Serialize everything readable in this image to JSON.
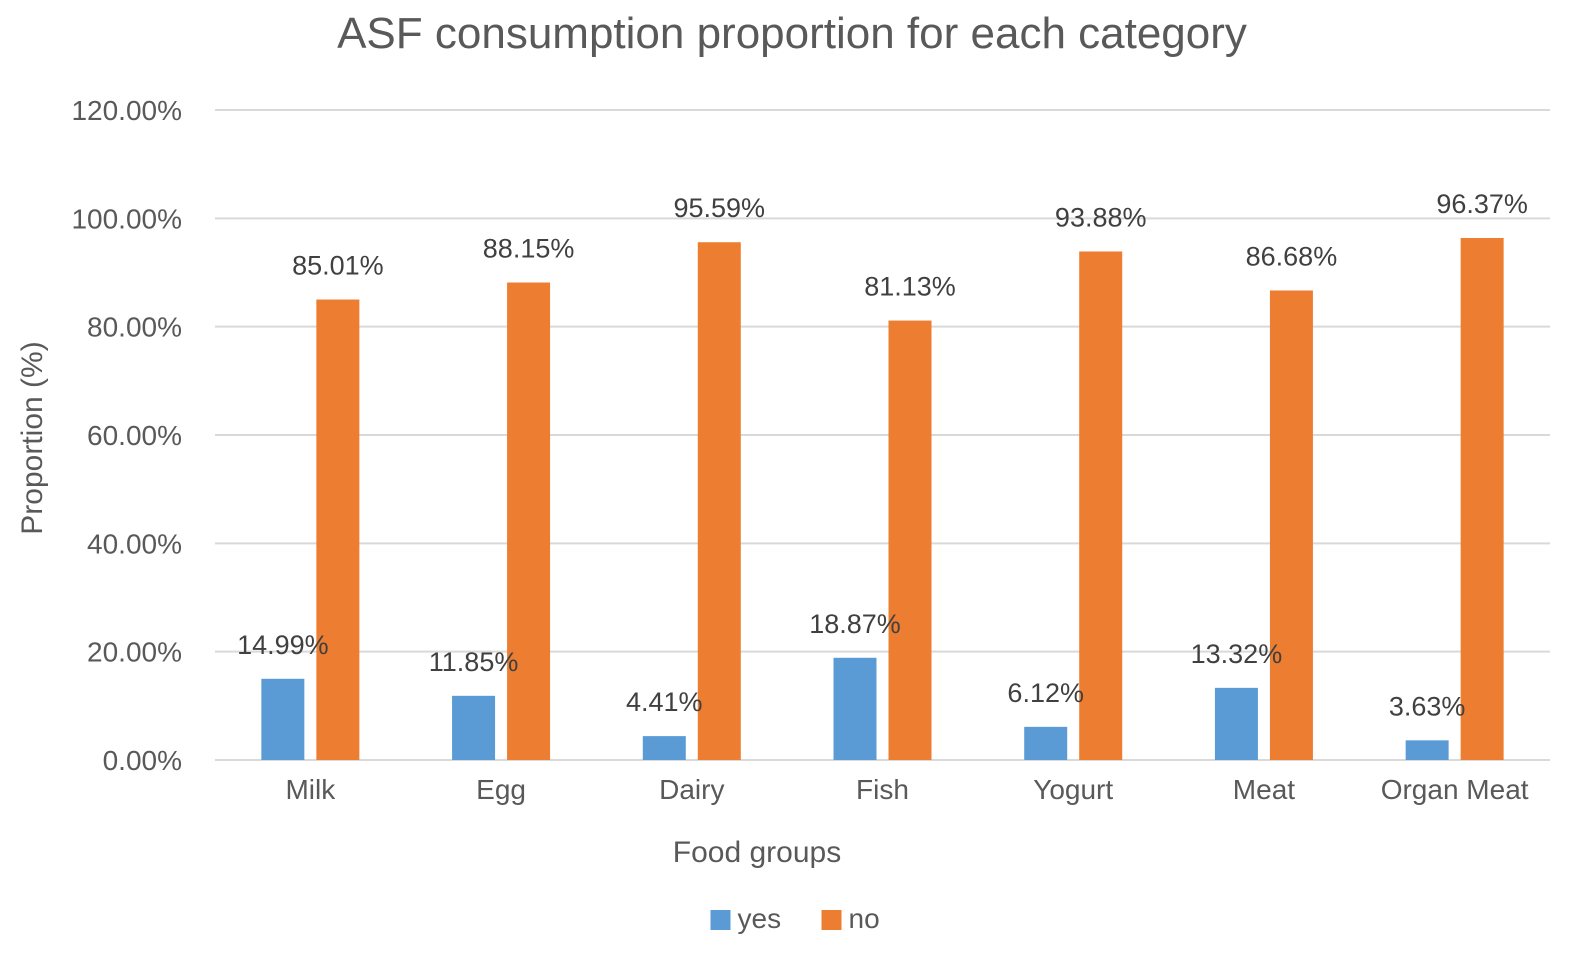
{
  "chart_data": {
    "type": "bar",
    "title": "ASF consumption proportion for each category",
    "xlabel": "Food groups",
    "ylabel": "Proportion (%)",
    "ylim": [
      0,
      120
    ],
    "y_ticks": [
      0,
      20,
      40,
      60,
      80,
      100,
      120
    ],
    "y_tick_labels": [
      "0.00%",
      "20.00%",
      "40.00%",
      "60.00%",
      "80.00%",
      "100.00%",
      "120.00%"
    ],
    "grid": true,
    "legend_position": "bottom",
    "categories": [
      "Milk",
      "Egg",
      "Dairy",
      "Fish",
      "Yogurt",
      "Meat",
      "Organ Meat"
    ],
    "series": [
      {
        "name": "yes",
        "color": "#5b9bd5",
        "values": [
          14.99,
          11.85,
          4.41,
          18.87,
          6.12,
          13.32,
          3.63
        ],
        "labels": [
          "14.99%",
          "11.85%",
          "4.41%",
          "18.87%",
          "6.12%",
          "13.32%",
          "3.63%"
        ]
      },
      {
        "name": "no",
        "color": "#ed7d31",
        "values": [
          85.01,
          88.15,
          95.59,
          81.13,
          93.88,
          86.68,
          96.37
        ],
        "labels": [
          "85.01%",
          "88.15%",
          "95.59%",
          "81.13%",
          "93.88%",
          "86.68%",
          "96.37%"
        ]
      }
    ]
  }
}
